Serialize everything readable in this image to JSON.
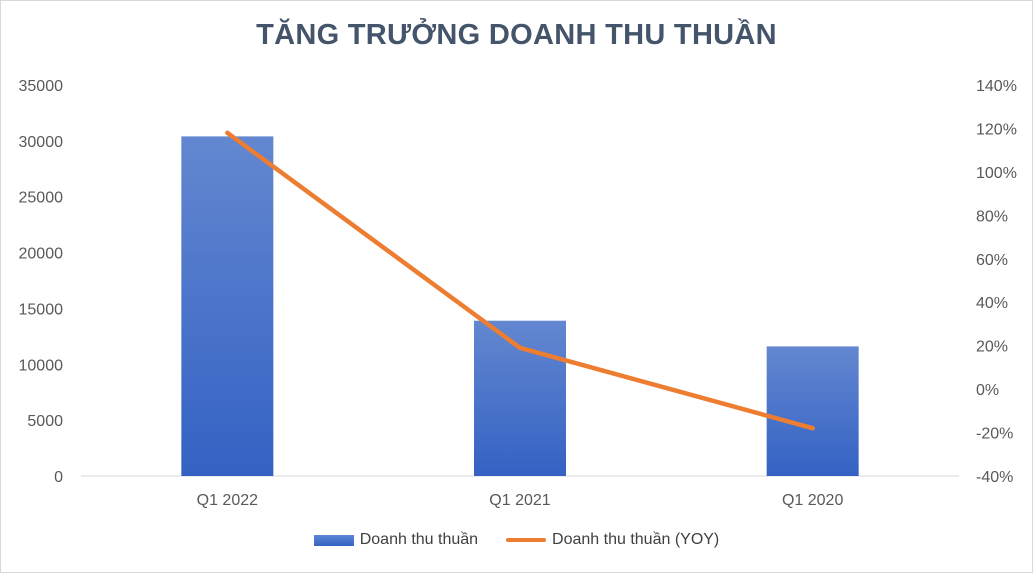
{
  "chart_data": {
    "type": "bar+line",
    "title": "TĂNG TRƯỞNG DOANH THU THUẦN",
    "categories": [
      "Q1 2022",
      "Q1 2021",
      "Q1 2020"
    ],
    "series": [
      {
        "name": "Doanh thu thuần",
        "type": "bar",
        "axis": "left",
        "values": [
          30400,
          13900,
          11600
        ],
        "color": "#4472c4"
      },
      {
        "name": "Doanh thu thuần (YOY)",
        "type": "line",
        "axis": "right",
        "values": [
          118,
          19,
          -18
        ],
        "unit": "%",
        "color": "#ed7d31"
      }
    ],
    "y_left": {
      "min": 0,
      "max": 35000,
      "ticks": [
        "0",
        "5000",
        "10000",
        "15000",
        "20000",
        "25000",
        "30000",
        "35000"
      ]
    },
    "y_right": {
      "min": -40,
      "max": 140,
      "ticks": [
        "-40%",
        "-20%",
        "0%",
        "20%",
        "40%",
        "60%",
        "80%",
        "100%",
        "120%",
        "140%"
      ]
    },
    "grid": false,
    "legend": "bottom"
  }
}
